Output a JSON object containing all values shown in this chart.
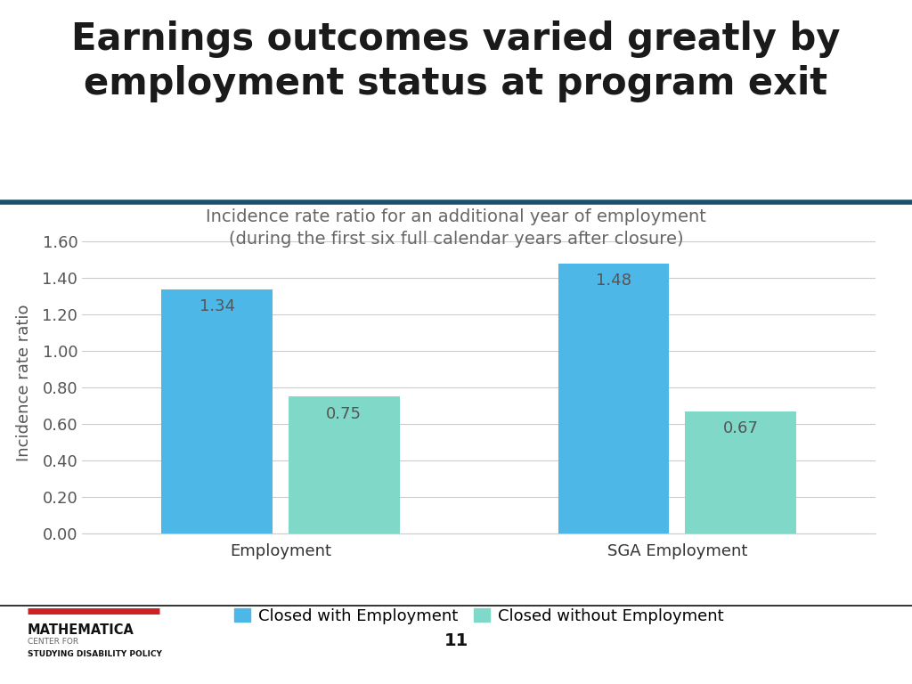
{
  "title_line1": "Earnings outcomes varied greatly by",
  "title_line2": "employment status at program exit",
  "subtitle_line1": "Incidence rate ratio for an additional year of employment",
  "subtitle_line2": "(during the first six full calendar years after closure)",
  "groups": [
    "Employment",
    "SGA Employment"
  ],
  "series": [
    {
      "name": "Closed with Employment",
      "values": [
        1.34,
        1.48
      ],
      "color": "#4db8e8"
    },
    {
      "name": "Closed without Employment",
      "values": [
        0.75,
        0.67
      ],
      "color": "#7fd8c8"
    }
  ],
  "ylabel": "Incidence rate ratio",
  "ylim": [
    0,
    1.65
  ],
  "yticks": [
    0.0,
    0.2,
    0.4,
    0.6,
    0.8,
    1.0,
    1.2,
    1.4,
    1.6
  ],
  "title_color": "#1a1a1a",
  "subtitle_color": "#666666",
  "background_color": "#ffffff",
  "title_fontsize": 30,
  "subtitle_fontsize": 14,
  "bar_label_fontsize": 13,
  "bar_label_color": "#555555",
  "ylabel_fontsize": 13,
  "tick_fontsize": 13,
  "header_line_color": "#1c4f6b",
  "footer_line_color": "#111111",
  "page_number": "11",
  "legend_color1": "#4db8e8",
  "legend_color2": "#7fd8c8"
}
